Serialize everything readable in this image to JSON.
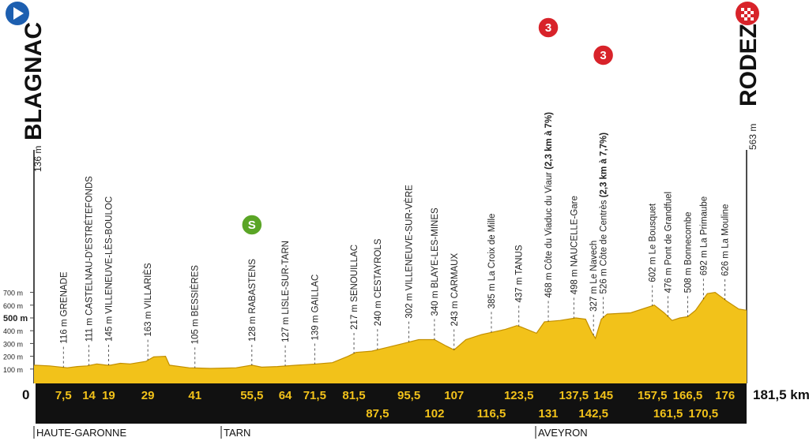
{
  "chart_data": {
    "type": "area",
    "start": {
      "name": "BLAGNAC",
      "altitude": "136 m"
    },
    "finish": {
      "name": "RODEZ",
      "altitude": "563 m"
    },
    "x": [
      0,
      4,
      8.5,
      11,
      13.5,
      16,
      18.5,
      19.5,
      22,
      24.5,
      28.5,
      30.5,
      33.5,
      34.5,
      39.5,
      45,
      51.5,
      55.5,
      58,
      62,
      67,
      72,
      76,
      80,
      82,
      86,
      90,
      94,
      98,
      102,
      105,
      107,
      110,
      114,
      117,
      120,
      123,
      124,
      128,
      130,
      134,
      138,
      140.5,
      142,
      143,
      144.5,
      146,
      152,
      156,
      158,
      160.5,
      162.5,
      164.5,
      166.5,
      168.5,
      171.5,
      173.5,
      176.5,
      179.5,
      181.5
    ],
    "values": [
      130,
      125,
      110,
      120,
      125,
      140,
      130,
      130,
      145,
      140,
      160,
      195,
      200,
      130,
      110,
      105,
      110,
      130,
      115,
      120,
      130,
      140,
      150,
      200,
      230,
      240,
      270,
      300,
      330,
      330,
      280,
      250,
      330,
      370,
      390,
      410,
      440,
      430,
      380,
      470,
      480,
      500,
      490,
      390,
      340,
      490,
      530,
      540,
      580,
      600,
      540,
      480,
      500,
      510,
      560,
      690,
      700,
      630,
      570,
      560
    ],
    "xlim": [
      0,
      181.5
    ],
    "ylim": [
      0,
      750
    ],
    "yticks": [
      {
        "value": 100,
        "label": "100 m"
      },
      {
        "value": 200,
        "label": "200 m"
      },
      {
        "value": 300,
        "label": "300 m"
      },
      {
        "value": 400,
        "label": "400 m"
      },
      {
        "value": 500,
        "label": "500 m"
      },
      {
        "value": 600,
        "label": "600 m"
      },
      {
        "value": 700,
        "label": "700 m"
      }
    ],
    "xticks": [
      {
        "value": 0,
        "label": "0"
      },
      {
        "value": 7.5,
        "label": "7,5"
      },
      {
        "value": 14,
        "label": "14"
      },
      {
        "value": 19,
        "label": "19"
      },
      {
        "value": 29,
        "label": "29"
      },
      {
        "value": 41,
        "label": "41"
      },
      {
        "value": 55.5,
        "label": "55,5"
      },
      {
        "value": 64,
        "label": "64"
      },
      {
        "value": 71.5,
        "label": "71,5"
      },
      {
        "value": 81.5,
        "label": "81,5"
      },
      {
        "value": 87.5,
        "label": "87,5"
      },
      {
        "value": 95.5,
        "label": "95,5"
      },
      {
        "value": 102,
        "label": "102"
      },
      {
        "value": 107,
        "label": "107"
      },
      {
        "value": 116.5,
        "label": "116,5"
      },
      {
        "value": 123.5,
        "label": "123,5"
      },
      {
        "value": 131,
        "label": "131"
      },
      {
        "value": 137.5,
        "label": "137,5"
      },
      {
        "value": 142.5,
        "label": "142,5"
      },
      {
        "value": 145,
        "label": "145"
      },
      {
        "value": 157.5,
        "label": "157,5"
      },
      {
        "value": 161.5,
        "label": "161,5"
      },
      {
        "value": 166.5,
        "label": "166,5"
      },
      {
        "value": 170.5,
        "label": "170,5"
      },
      {
        "value": 176,
        "label": "176"
      },
      {
        "value": 181.5,
        "label": "181,5 km"
      }
    ],
    "waypoints": [
      {
        "km": 7.5,
        "label": "116 m GRENADE"
      },
      {
        "km": 14,
        "label": "111 m CASTELNAU-D'ESTRÉTEFONDS"
      },
      {
        "km": 19,
        "label": "145 m VILLENEUVE-LÈS-BOULOC"
      },
      {
        "km": 29,
        "label": "163 m VILLARIÈS"
      },
      {
        "km": 41,
        "label": "105 m BESSIÈRES"
      },
      {
        "km": 55.5,
        "label": "128 m RABASTENS",
        "icon": "S"
      },
      {
        "km": 64,
        "label": "127 m LISLE-SUR-TARN"
      },
      {
        "km": 71.5,
        "label": "139 m GAILLAC"
      },
      {
        "km": 81.5,
        "label": "217 m SENOUILLAC"
      },
      {
        "km": 87.5,
        "label": "240 m CESTAYROLS"
      },
      {
        "km": 95.5,
        "label": "302 m VILLENEUVE-SUR-VÈRE"
      },
      {
        "km": 102,
        "label": "340 m BLAYE-LES-MINES"
      },
      {
        "km": 107,
        "label": "243 m CARMAUX"
      },
      {
        "km": 116.5,
        "label": "385 m La Croix de Mille"
      },
      {
        "km": 123.5,
        "label": "437 m TANUS"
      },
      {
        "km": 131,
        "label": "468 m Côte du Viaduc du Viaur",
        "detail": "(2,3 km à 7%)",
        "icon": "3"
      },
      {
        "km": 137.5,
        "label": "498 m NAUCELLE-Gare"
      },
      {
        "km": 142.5,
        "label": "327 m Le Navech"
      },
      {
        "km": 145,
        "label": "526 m Côte de Centrès",
        "detail": "(2,3 km à 7,7%)",
        "icon": "3"
      },
      {
        "km": 157.5,
        "label": "602 m Le Bousquet"
      },
      {
        "km": 161.5,
        "label": "476 m Pont de Grandfuel"
      },
      {
        "km": 166.5,
        "label": "508 m Bonnecombe"
      },
      {
        "km": 170.5,
        "label": "692 m La Primaube"
      },
      {
        "km": 176,
        "label": "626 m La Mouline"
      }
    ],
    "departments": [
      "HAUTE-GARONNE",
      "TARN",
      "AVEYRON"
    ],
    "color": "#f2c21a"
  }
}
